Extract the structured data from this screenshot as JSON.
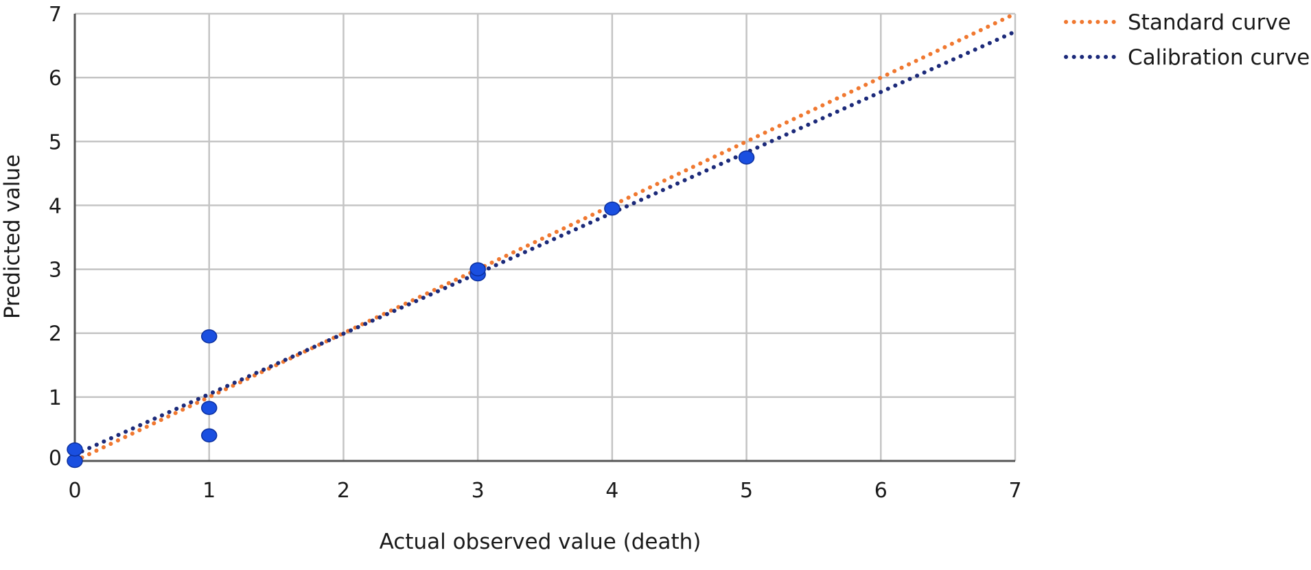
{
  "chart_data": {
    "type": "scatter",
    "title": "",
    "xlabel": "Actual observed value (death)",
    "ylabel": "Predicted value",
    "xlim": [
      0,
      7
    ],
    "ylim": [
      0,
      7
    ],
    "x_ticks": [
      0,
      1,
      2,
      3,
      4,
      5,
      6,
      7
    ],
    "y_ticks": [
      0,
      1,
      2,
      3,
      4,
      5,
      6,
      7
    ],
    "grid": true,
    "legend_position": "top-right",
    "series": [
      {
        "name": "Standard curve",
        "kind": "dotted-line",
        "color": "#f07830",
        "points": [
          [
            0,
            0
          ],
          [
            7,
            7
          ]
        ]
      },
      {
        "name": "Calibration curve",
        "kind": "dotted-line",
        "color": "#1c2a7a",
        "points": [
          [
            0,
            0.1
          ],
          [
            7,
            6.72
          ]
        ]
      },
      {
        "name": "",
        "kind": "points",
        "color": "#1a4fe0",
        "points": [
          [
            0,
            0.0
          ],
          [
            0,
            0.18
          ],
          [
            1,
            0.4
          ],
          [
            1,
            0.83
          ],
          [
            1,
            1.95
          ],
          [
            3,
            2.92
          ],
          [
            3,
            3.0
          ],
          [
            4,
            3.95
          ],
          [
            5,
            4.75
          ]
        ]
      }
    ]
  }
}
